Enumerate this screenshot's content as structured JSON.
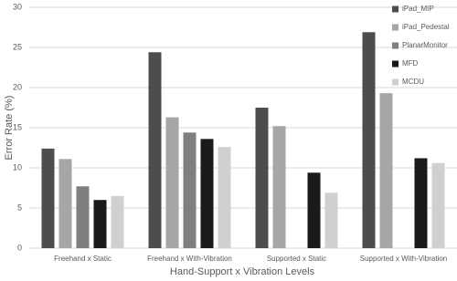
{
  "chart_data": {
    "type": "bar",
    "x_label": "Hand-Support x Vibration Levels",
    "y_label": "Error Rate (%)",
    "categories": [
      "Freehand x Static",
      "Freehand x With-Vibration",
      "Supported x Static",
      "Supported x With-Vibration"
    ],
    "series": [
      {
        "name": "iPad_MIP",
        "color": "#4d4d4d",
        "values": [
          12.4,
          24.4,
          17.5,
          26.9
        ]
      },
      {
        "name": "iPad_Pedestal",
        "color": "#a6a6a6",
        "values": [
          11.1,
          16.3,
          15.2,
          19.3
        ]
      },
      {
        "name": "PlanarMonitor",
        "color": "#7f7f7f",
        "values": [
          7.7,
          14.4,
          null,
          null
        ]
      },
      {
        "name": "MFD",
        "color": "#1a1a1a",
        "values": [
          6.0,
          13.6,
          9.4,
          11.2
        ]
      },
      {
        "name": "MCDU",
        "color": "#d0d0d0",
        "values": [
          6.5,
          12.6,
          6.9,
          10.6
        ]
      }
    ],
    "ylim": [
      0,
      30
    ],
    "yticks": [
      0,
      5,
      10,
      15,
      20,
      25,
      30
    ],
    "grid": true,
    "legend": "top-right"
  }
}
